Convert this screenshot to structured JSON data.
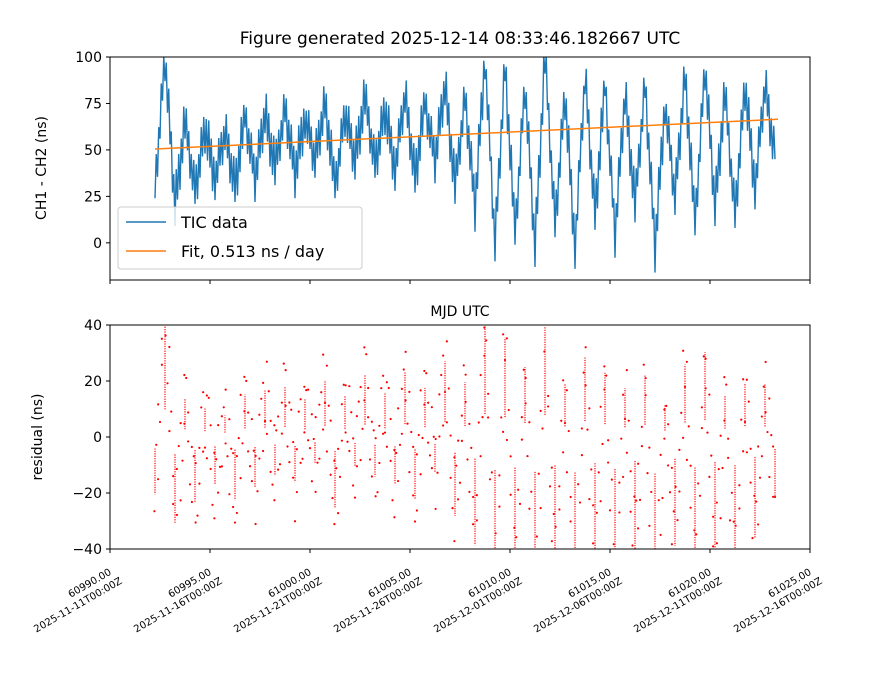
{
  "chart_data": [
    {
      "type": "line",
      "title": "Figure generated 2025-12-14 08:33:46.182667 UTC",
      "xlabel": "MJD UTC",
      "ylabel": "CH1 - CH2 (ns)",
      "xlim": [
        60990,
        61025
      ],
      "ylim": [
        -20,
        100
      ],
      "yticks": [
        "0",
        "25",
        "50",
        "75",
        "100"
      ],
      "ytick_values": [
        0,
        25,
        50,
        75,
        100
      ],
      "legend": {
        "placement": "lower-left",
        "entries": [
          "TIC data",
          "Fit, 0.513 ns / day"
        ]
      },
      "series": [
        {
          "name": "TIC data",
          "color": "#1f77b4",
          "x_start": 60992.25,
          "x_step": 0.5,
          "values": [
            30,
            100,
            20,
            65,
            28,
            62,
            35,
            60,
            30,
            68,
            35,
            70,
            40,
            72,
            38,
            68,
            45,
            75,
            30,
            70,
            45,
            78,
            42,
            72,
            40,
            80,
            35,
            75,
            45,
            85,
            30,
            78,
            20,
            100,
            0,
            95,
            5,
            85,
            -2,
            100,
            10,
            80,
            -2,
            90,
            15,
            85,
            5,
            80,
            20,
            85,
            -2,
            75,
            25,
            90,
            10,
            95,
            20,
            80,
            15,
            85,
            30,
            85,
            45
          ]
        },
        {
          "name": "Fit, 0.513 ns / day",
          "color": "#ff7f0e",
          "x": [
            60992.25,
            61023.4
          ],
          "values": [
            50.5,
            66.5
          ],
          "slope_ns_per_day": 0.513
        }
      ]
    },
    {
      "type": "scatter",
      "title": "",
      "xlabel": "",
      "ylabel": "residual (ns)",
      "xlim": [
        60990,
        61025
      ],
      "ylim": [
        -40,
        40
      ],
      "yticks": [
        "−40",
        "−20",
        "0",
        "20",
        "40"
      ],
      "ytick_values": [
        -40,
        -20,
        0,
        20,
        40
      ],
      "series": [
        {
          "name": "residual",
          "color": "#ff0000",
          "derived_from": "TIC data minus Fit"
        }
      ],
      "xticks": [
        {
          "value": 60990,
          "mjd": "60990.00",
          "date": "2025-11-11T00:00Z"
        },
        {
          "value": 60995,
          "mjd": "60995.00",
          "date": "2025-11-16T00:00Z"
        },
        {
          "value": 61000,
          "mjd": "61000.00",
          "date": "2025-11-21T00:00Z"
        },
        {
          "value": 61005,
          "mjd": "61005.00",
          "date": "2025-11-26T00:00Z"
        },
        {
          "value": 61010,
          "mjd": "61010.00",
          "date": "2025-12-01T00:00Z"
        },
        {
          "value": 61015,
          "mjd": "61015.00",
          "date": "2025-12-06T00:00Z"
        },
        {
          "value": 61020,
          "mjd": "61020.00",
          "date": "2025-12-11T00:00Z"
        },
        {
          "value": 61025,
          "mjd": "61025.00",
          "date": "2025-12-16T00:00Z"
        }
      ]
    }
  ]
}
